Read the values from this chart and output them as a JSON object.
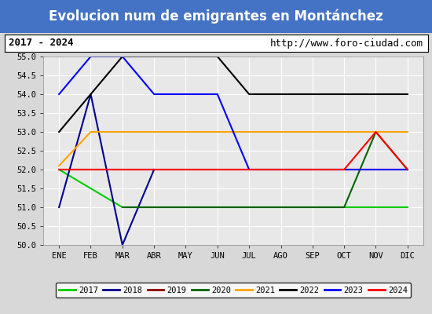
{
  "title": "Evolucion num de emigrantes en Montánchez",
  "subtitle_left": "2017 - 2024",
  "subtitle_right": "http://www.foro-ciudad.com",
  "x_labels": [
    "ENE",
    "FEB",
    "MAR",
    "ABR",
    "MAY",
    "JUN",
    "JUL",
    "AGO",
    "SEP",
    "OCT",
    "NOV",
    "DIC"
  ],
  "ylim": [
    50.0,
    55.0
  ],
  "yticks": [
    50.0,
    50.5,
    51.0,
    51.5,
    52.0,
    52.5,
    53.0,
    53.5,
    54.0,
    54.5,
    55.0
  ],
  "series": {
    "2017": {
      "color": "#00cc00",
      "data_x": [
        0,
        2,
        3,
        4,
        5,
        6,
        7,
        8,
        9,
        10,
        11
      ],
      "data_y": [
        52.0,
        51.0,
        51.0,
        51.0,
        51.0,
        51.0,
        51.0,
        51.0,
        51.0,
        51.0,
        51.0
      ]
    },
    "2018": {
      "color": "#00008b",
      "data_x": [
        0,
        1,
        2,
        3
      ],
      "data_y": [
        51.0,
        54.0,
        50.0,
        52.0
      ]
    },
    "2019": {
      "color": "#8b0000",
      "data_x": [
        0,
        1,
        2,
        3,
        4,
        5,
        6,
        7,
        8,
        9,
        10,
        11
      ],
      "data_y": [
        52.0,
        52.0,
        52.0,
        52.0,
        52.0,
        52.0,
        52.0,
        52.0,
        52.0,
        52.0,
        52.0,
        52.0
      ]
    },
    "2020": {
      "color": "#006400",
      "data_x": [
        2,
        3,
        4,
        5,
        6,
        7,
        8,
        9,
        10,
        11
      ],
      "data_y": [
        51.0,
        51.0,
        51.0,
        51.0,
        51.0,
        51.0,
        51.0,
        51.0,
        53.0,
        52.0
      ]
    },
    "2021": {
      "color": "#ffa500",
      "data_x": [
        0,
        1,
        2,
        3,
        4,
        5,
        6,
        7,
        8,
        9,
        10,
        11
      ],
      "data_y": [
        52.1,
        53.0,
        53.0,
        53.0,
        53.0,
        53.0,
        53.0,
        53.0,
        53.0,
        53.0,
        53.0,
        53.0
      ]
    },
    "2022": {
      "color": "#000000",
      "data_x": [
        0,
        2,
        5,
        6,
        7,
        8,
        9,
        10,
        11
      ],
      "data_y": [
        53.0,
        55.0,
        55.0,
        54.0,
        54.0,
        54.0,
        54.0,
        54.0,
        54.0
      ]
    },
    "2023": {
      "color": "#0000ff",
      "data_x": [
        0,
        1,
        2,
        3,
        4,
        5,
        6,
        7,
        8,
        9,
        10,
        11
      ],
      "data_y": [
        54.0,
        55.0,
        55.0,
        54.0,
        54.0,
        54.0,
        52.0,
        52.0,
        52.0,
        52.0,
        52.0,
        52.0
      ]
    },
    "2024": {
      "color": "#ff0000",
      "data_x": [
        0,
        1,
        2,
        3,
        4,
        5,
        6,
        7,
        8,
        9,
        10,
        11
      ],
      "data_y": [
        52.0,
        52.0,
        52.0,
        52.0,
        52.0,
        52.0,
        52.0,
        52.0,
        52.0,
        52.0,
        53.0,
        52.0
      ]
    }
  },
  "background_color": "#d8d8d8",
  "plot_background": "#e8e8e8",
  "title_bg": "#4472c4",
  "title_color": "#ffffff",
  "title_fontsize": 12,
  "subtitle_fontsize": 9,
  "legend_order": [
    "2017",
    "2018",
    "2019",
    "2020",
    "2021",
    "2022",
    "2023",
    "2024"
  ]
}
